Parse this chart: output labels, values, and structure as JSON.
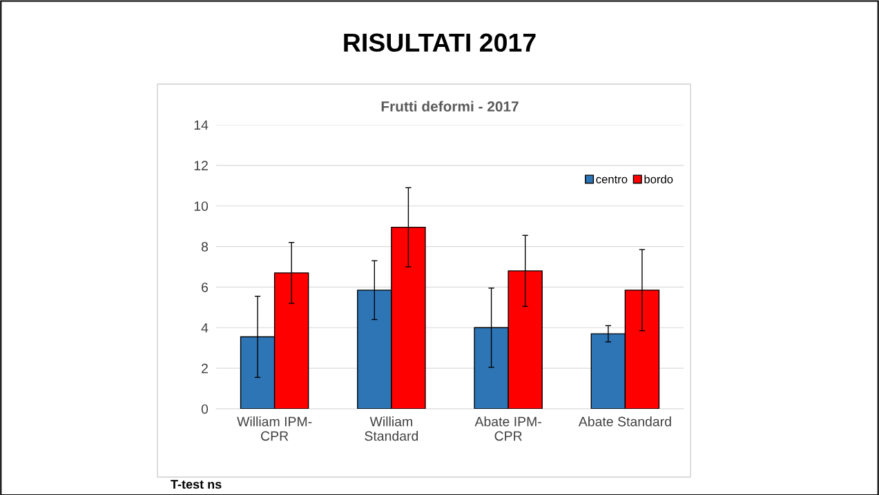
{
  "chart_data": {
    "type": "bar",
    "title": "RISULTATI 2017",
    "subtitle": "Frutti deformi - 2017",
    "categories": [
      "William IPM-\nCPR",
      "William\nStandard",
      "Abate IPM-\nCPR",
      "Abate Standard"
    ],
    "series": [
      {
        "name": "centro",
        "color": "#2e75b6",
        "values": [
          3.55,
          5.85,
          4.0,
          3.7
        ],
        "errors": [
          2.0,
          1.45,
          1.95,
          0.4
        ]
      },
      {
        "name": "bordo",
        "color": "#ff0000",
        "values": [
          6.7,
          8.95,
          6.8,
          5.85
        ],
        "errors": [
          1.5,
          1.95,
          1.75,
          2.0
        ]
      }
    ],
    "ylim": [
      0,
      14
    ],
    "yticks": [
      0,
      2,
      4,
      6,
      8,
      10,
      12,
      14
    ],
    "grid": "y",
    "legend": "top right",
    "annotations": [
      "T-test ns"
    ]
  }
}
